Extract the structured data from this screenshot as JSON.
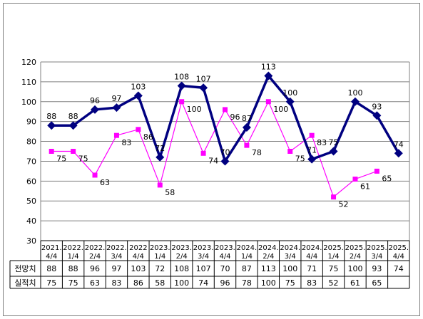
{
  "chart_data": {
    "type": "line",
    "categories": [
      [
        "2021.",
        "4/4"
      ],
      [
        "2022.",
        "1/4"
      ],
      [
        "2022.",
        "2/4"
      ],
      [
        "2022.",
        "3/4"
      ],
      [
        "2022",
        "4/4"
      ],
      [
        "2023.",
        "1/4"
      ],
      [
        "2023.",
        "2/4"
      ],
      [
        "2023.",
        "3/4"
      ],
      [
        "2023.",
        "4/4"
      ],
      [
        "2024.",
        "1/4"
      ],
      [
        "2024.",
        "2/4"
      ],
      [
        "2024.",
        "3/4"
      ],
      [
        "2024.",
        "4/4"
      ],
      [
        "2025.",
        "1/4"
      ],
      [
        "2025.",
        "2/4"
      ],
      [
        "2025.",
        "3/4"
      ],
      [
        "2025.",
        "4/4"
      ]
    ],
    "series": [
      {
        "name": "전망치",
        "color": "#000080",
        "values": [
          88,
          88,
          96,
          97,
          103,
          72,
          108,
          107,
          70,
          87,
          113,
          100,
          71,
          75,
          100,
          93,
          74
        ]
      },
      {
        "name": "실적치",
        "color": "#ff00ff",
        "values": [
          75,
          75,
          63,
          83,
          86,
          58,
          100,
          74,
          96,
          78,
          100,
          75,
          83,
          52,
          61,
          65,
          null
        ]
      }
    ],
    "ylim": [
      30,
      120
    ],
    "yticks": [
      30,
      40,
      50,
      60,
      70,
      80,
      90,
      100,
      110,
      120
    ],
    "grid": true,
    "legend": "data-table"
  }
}
